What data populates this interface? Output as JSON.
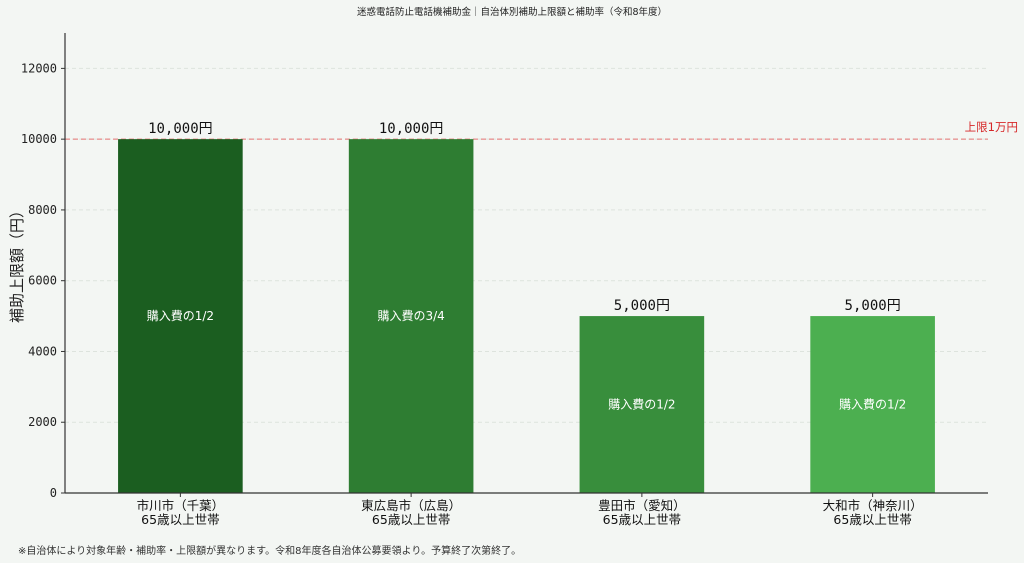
{
  "chart_data": {
    "type": "bar",
    "title": "迷惑電話防止電話機補助金｜自治体別補助上限額と補助率（令和8年度）",
    "xlabel": "",
    "ylabel": "補助上限額（円）",
    "ylim": [
      0,
      13000
    ],
    "yticks": [
      0,
      2000,
      4000,
      6000,
      8000,
      10000,
      12000
    ],
    "grid": true,
    "categories": [
      [
        "市川市（千葉）",
        "65歳以上世帯"
      ],
      [
        "東広島市（広島）",
        "65歳以上世帯"
      ],
      [
        "豊田市（愛知）",
        "65歳以上世帯"
      ],
      [
        "大和市（神奈川）",
        "65歳以上世帯"
      ]
    ],
    "values": [
      10000,
      10000,
      5000,
      5000
    ],
    "value_labels": [
      "10,000円",
      "10,000円",
      "5,000円",
      "5,000円"
    ],
    "inner_labels": [
      "購入費の1/2",
      "購入費の3/4",
      "購入費の1/2",
      "購入費の1/2"
    ],
    "bar_colors": [
      "#1b5e20",
      "#2e7d32",
      "#388e3c",
      "#4caf50"
    ],
    "reference_line": {
      "value": 10000,
      "label": "上限1万円",
      "color": "#e57373"
    },
    "footnote": "※自治体により対象年齢・補助率・上限額が異なります。令和8年度各自治体公募要領より。予算終了次第終了。"
  }
}
